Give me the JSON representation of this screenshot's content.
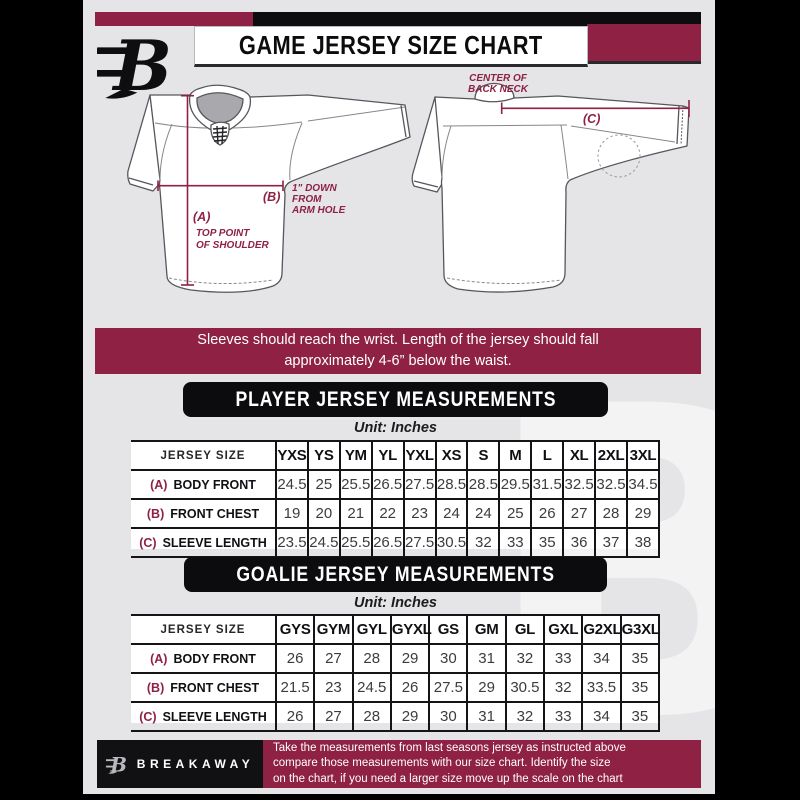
{
  "canvas": {
    "bg": "#e5e5e7",
    "frame": "#000000",
    "maroon": "#8e2144",
    "black": "#0d0d0f"
  },
  "header": {
    "title": "GAME JERSEY SIZE CHART"
  },
  "diagram": {
    "front": {
      "a_key": "(A)",
      "a_line1": "TOP POINT",
      "a_line2": "OF SHOULDER",
      "b_key": "(B)",
      "b_line1": "1\" DOWN",
      "b_line2": "FROM",
      "b_line3": "ARM HOLE"
    },
    "back": {
      "c_key": "(C)",
      "c_line1": "CENTER OF",
      "c_line2": "BACK NECK"
    }
  },
  "banner": {
    "line1": "Sleeves should reach the wrist. Length of the jersey should fall",
    "line2": "approximately 4-6” below the waist."
  },
  "player_table": {
    "title": "PLAYER JERSEY MEASUREMENTS",
    "unit_label": "Unit: Inches",
    "size_header": "JERSEY SIZE",
    "columns": [
      "YXS",
      "YS",
      "YM",
      "YL",
      "YXL",
      "XS",
      "S",
      "M",
      "L",
      "XL",
      "2XL",
      "3XL"
    ],
    "rows": [
      {
        "key": "(A)",
        "label": "BODY FRONT",
        "values": [
          "24.5",
          "25",
          "25.5",
          "26.5",
          "27.5",
          "28.5",
          "28.5",
          "29.5",
          "31.5",
          "32.5",
          "32.5",
          "34.5"
        ]
      },
      {
        "key": "(B)",
        "label": "FRONT CHEST",
        "values": [
          "19",
          "20",
          "21",
          "22",
          "23",
          "24",
          "24",
          "25",
          "26",
          "27",
          "28",
          "29"
        ]
      },
      {
        "key": "(C)",
        "label": "SLEEVE LENGTH",
        "values": [
          "23.5",
          "24.5",
          "25.5",
          "26.5",
          "27.5",
          "30.5",
          "32",
          "33",
          "35",
          "36",
          "37",
          "38"
        ]
      }
    ]
  },
  "goalie_table": {
    "title": "GOALIE JERSEY MEASUREMENTS",
    "unit_label": "Unit: Inches",
    "size_header": "JERSEY SIZE",
    "columns": [
      "GYS",
      "GYM",
      "GYL",
      "GYXL",
      "GS",
      "GM",
      "GL",
      "GXL",
      "G2XL",
      "G3XL"
    ],
    "rows": [
      {
        "key": "(A)",
        "label": "BODY FRONT",
        "values": [
          "26",
          "27",
          "28",
          "29",
          "30",
          "31",
          "32",
          "33",
          "34",
          "35"
        ]
      },
      {
        "key": "(B)",
        "label": "FRONT CHEST",
        "values": [
          "21.5",
          "23",
          "24.5",
          "26",
          "27.5",
          "29",
          "30.5",
          "32",
          "33.5",
          "35"
        ]
      },
      {
        "key": "(C)",
        "label": "SLEEVE LENGTH",
        "values": [
          "26",
          "27",
          "28",
          "29",
          "30",
          "31",
          "32",
          "33",
          "34",
          "35"
        ]
      }
    ]
  },
  "footer": {
    "brand": "BREAKAWAY",
    "line1": "Take the measurements from last seasons jersey as instructed above",
    "line2": "compare those measurements  with our size chart. Identify the size",
    "line3": "on the chart, if you need a larger size move up the scale on the chart"
  },
  "watermark": {
    "letter": "B"
  }
}
